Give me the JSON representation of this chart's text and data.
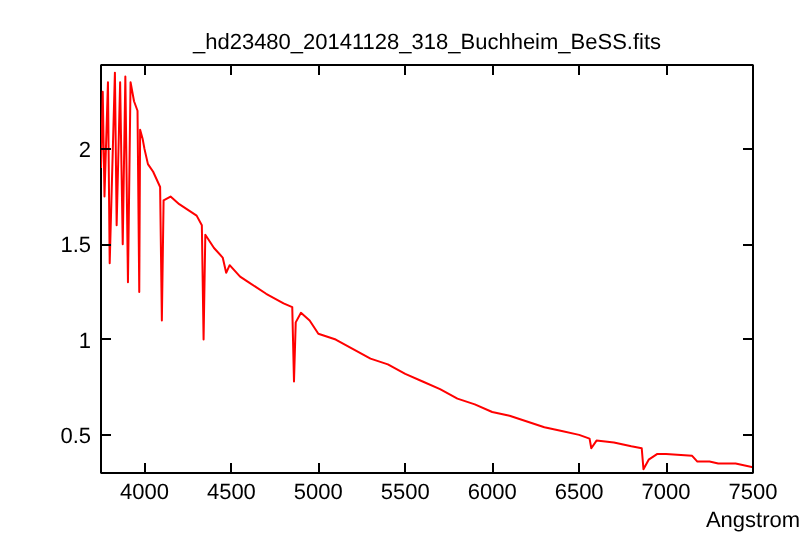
{
  "chart_data": {
    "type": "line",
    "title": "_hd23480_20141128_318_Buchheim_BeSS.fits",
    "xlabel": "Angstrom",
    "x": [
      3750,
      3760,
      3770,
      3790,
      3800,
      3830,
      3840,
      3860,
      3875,
      3890,
      3905,
      3920,
      3940,
      3960,
      3970,
      3975,
      3990,
      4000,
      4020,
      4050,
      4090,
      4100,
      4110,
      4150,
      4200,
      4250,
      4300,
      4330,
      4340,
      4350,
      4400,
      4450,
      4470,
      4490,
      4550,
      4600,
      4700,
      4800,
      4850,
      4860,
      4870,
      4900,
      4950,
      5000,
      5100,
      5200,
      5300,
      5400,
      5500,
      5600,
      5700,
      5800,
      5900,
      6000,
      6100,
      6200,
      6300,
      6400,
      6500,
      6560,
      6570,
      6600,
      6700,
      6800,
      6860,
      6870,
      6900,
      6950,
      7000,
      7150,
      7180,
      7250,
      7300,
      7400,
      7500
    ],
    "series": [
      {
        "color": "#ff0000",
        "values": [
          1.9,
          2.3,
          1.75,
          2.35,
          1.4,
          2.4,
          1.6,
          2.35,
          1.5,
          2.38,
          1.3,
          2.35,
          2.25,
          2.2,
          1.25,
          2.1,
          2.05,
          2.0,
          1.92,
          1.88,
          1.8,
          1.1,
          1.73,
          1.75,
          1.71,
          1.68,
          1.65,
          1.6,
          1.0,
          1.55,
          1.48,
          1.43,
          1.35,
          1.39,
          1.33,
          1.3,
          1.24,
          1.19,
          1.17,
          0.78,
          1.09,
          1.14,
          1.1,
          1.03,
          1.0,
          0.95,
          0.9,
          0.87,
          0.82,
          0.78,
          0.74,
          0.69,
          0.66,
          0.62,
          0.6,
          0.57,
          0.54,
          0.52,
          0.5,
          0.48,
          0.43,
          0.47,
          0.46,
          0.44,
          0.43,
          0.32,
          0.37,
          0.4,
          0.4,
          0.39,
          0.36,
          0.36,
          0.35,
          0.35,
          0.33
        ]
      }
    ],
    "xlim": [
      3750,
      7500
    ],
    "ylim": [
      0.3,
      2.44
    ],
    "xticks": [
      4000,
      4500,
      5000,
      5500,
      6000,
      6500,
      7000,
      7500
    ],
    "yticks": [
      0.5,
      1,
      1.5,
      2
    ],
    "grid": false,
    "marker": "none",
    "line_style": "solid"
  }
}
